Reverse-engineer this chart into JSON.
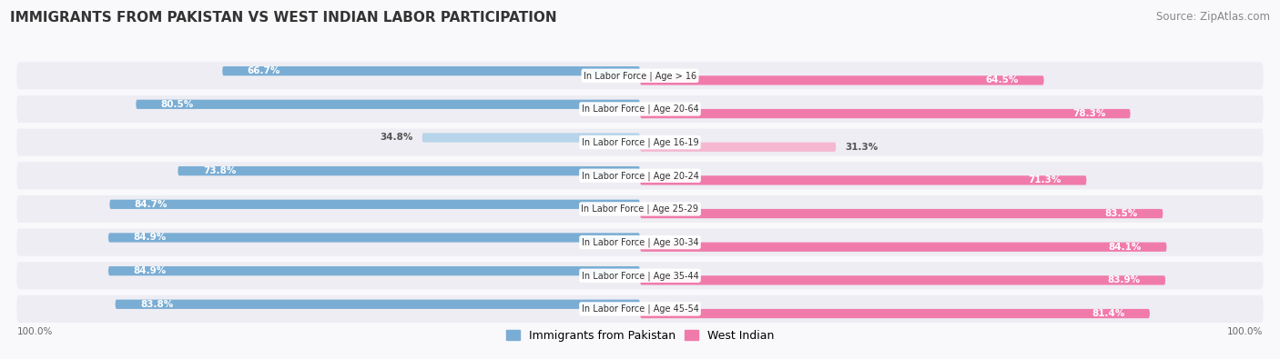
{
  "title": "IMMIGRANTS FROM PAKISTAN VS WEST INDIAN LABOR PARTICIPATION",
  "source": "Source: ZipAtlas.com",
  "categories": [
    "In Labor Force | Age > 16",
    "In Labor Force | Age 20-64",
    "In Labor Force | Age 16-19",
    "In Labor Force | Age 20-24",
    "In Labor Force | Age 25-29",
    "In Labor Force | Age 30-34",
    "In Labor Force | Age 35-44",
    "In Labor Force | Age 45-54"
  ],
  "pakistan_values": [
    66.7,
    80.5,
    34.8,
    73.8,
    84.7,
    84.9,
    84.9,
    83.8
  ],
  "westindian_values": [
    64.5,
    78.3,
    31.3,
    71.3,
    83.5,
    84.1,
    83.9,
    81.4
  ],
  "pakistan_color": "#7aadd4",
  "pakistan_light_color": "#b8d4ea",
  "westindian_color": "#f07bab",
  "westindian_light_color": "#f5b8d0",
  "row_bg_color": "#ededf3",
  "max_value": 100.0,
  "label_fontsize": 7.5,
  "title_fontsize": 11,
  "source_fontsize": 8.5,
  "legend_fontsize": 9,
  "tick_label": "100.0%",
  "background_color": "#f9f9fc",
  "cat_label_fontsize": 7.0
}
